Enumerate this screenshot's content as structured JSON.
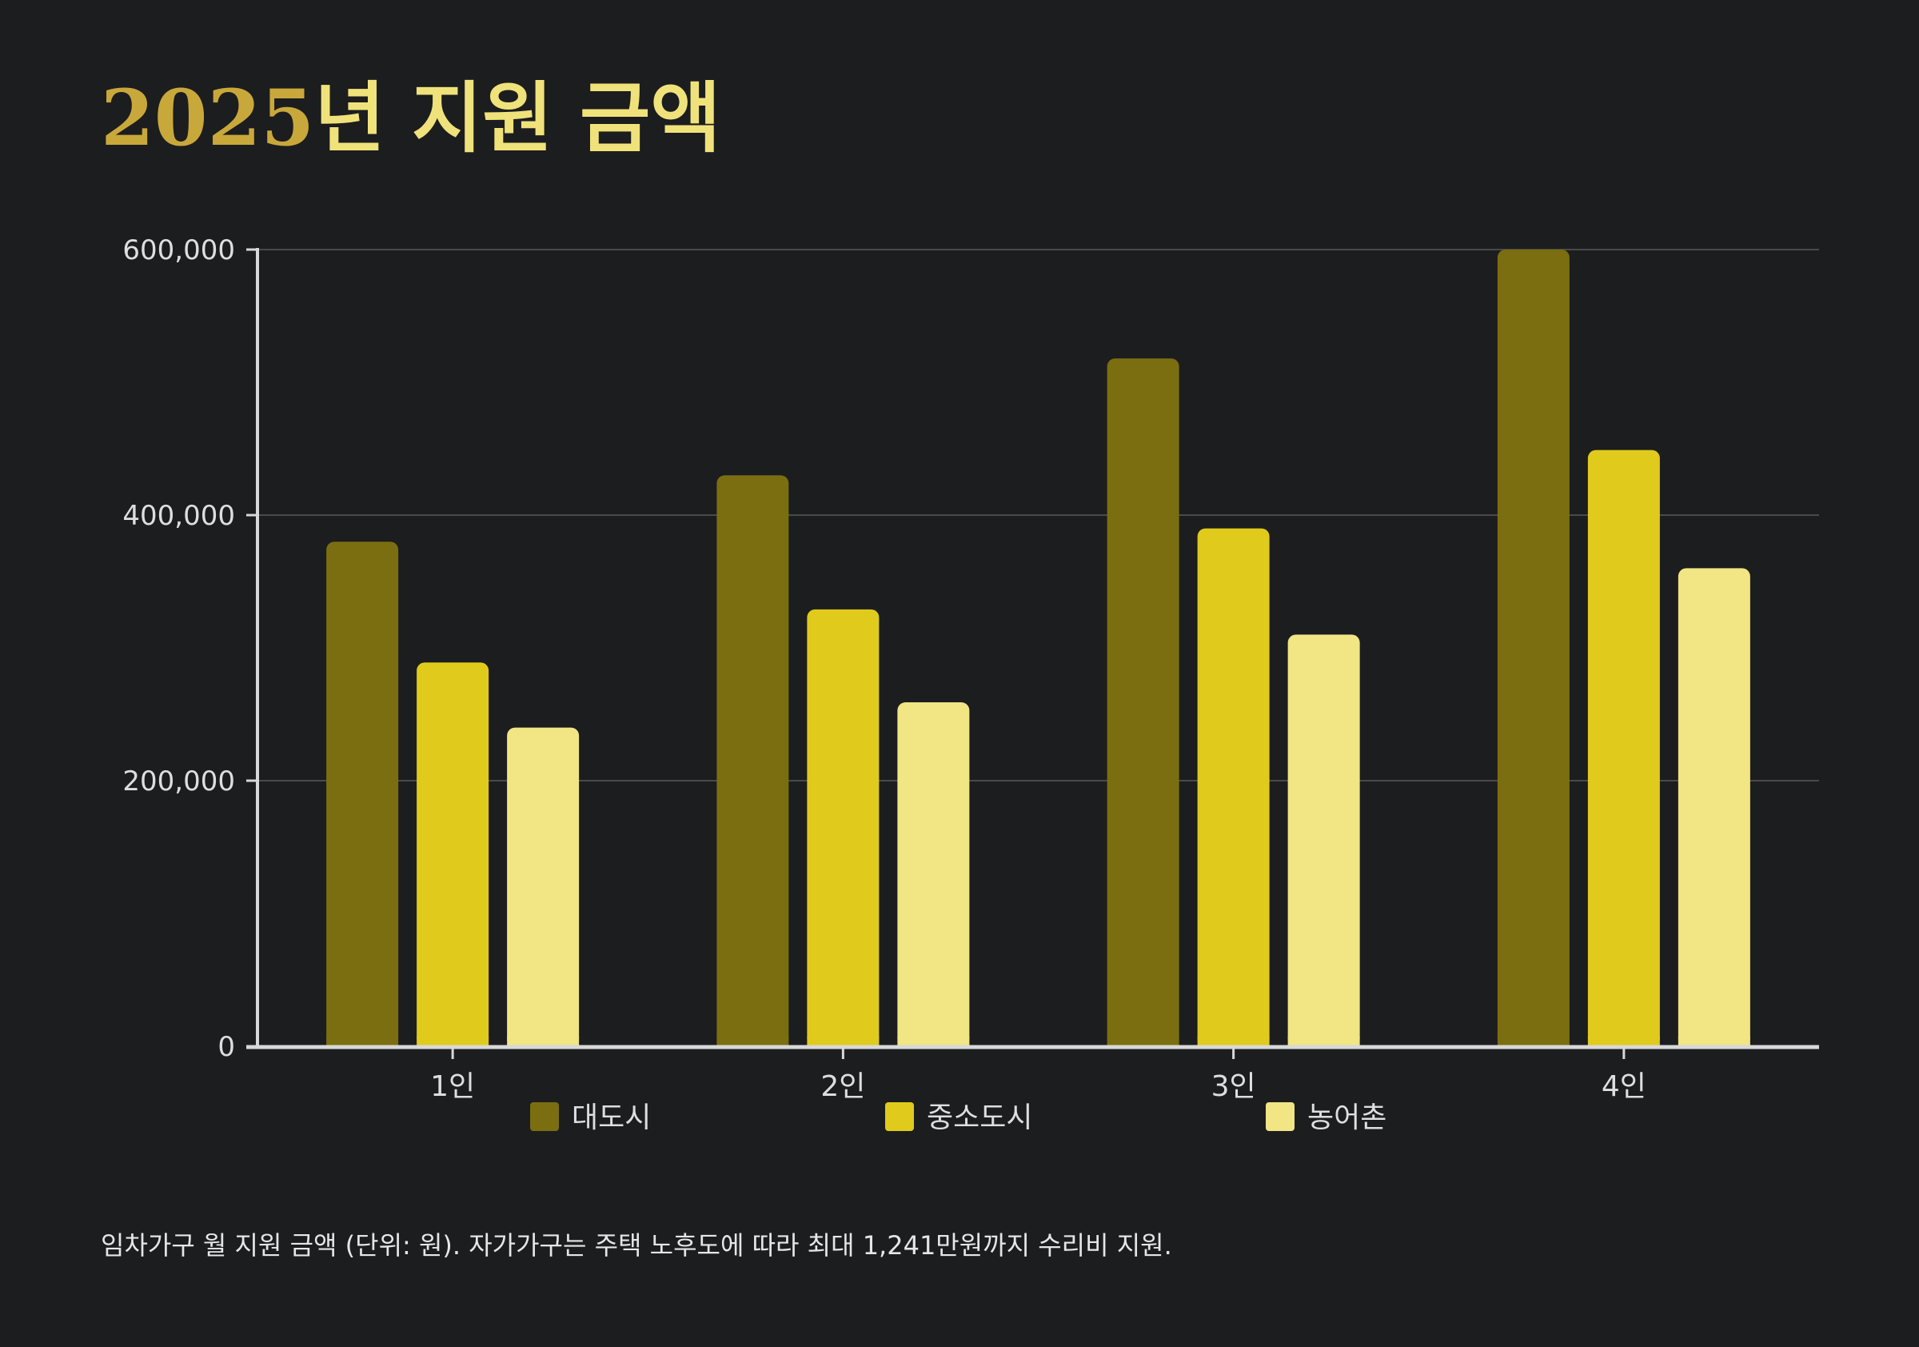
{
  "title": {
    "number": "2025",
    "rest": "년 지원 금액"
  },
  "footnote": "임차가구 월 지원 금액 (단위: 원). 자가가구는 주택 노후도에 따라 최대 1,241만원까지 수리비 지원.",
  "colors": {
    "background": "#1c1d1f",
    "grid": "#4a4a4a",
    "axis": "#d8d8d8",
    "tick_text": "#dedede",
    "title_number": "#c9a83b",
    "title_text": "#f0e27a"
  },
  "chart_data": {
    "type": "bar",
    "categories": [
      "1인",
      "2인",
      "3인",
      "4인"
    ],
    "series": [
      {
        "name": "대도시",
        "color": "#7a6e10",
        "values": [
          380000,
          430000,
          518000,
          600000
        ]
      },
      {
        "name": "중소도시",
        "color": "#e0cb1c",
        "values": [
          289000,
          329000,
          390000,
          449000
        ]
      },
      {
        "name": "농어촌",
        "color": "#f1e584",
        "values": [
          240000,
          259000,
          310000,
          360000
        ]
      }
    ],
    "yticks": [
      {
        "value": 0,
        "label": "0"
      },
      {
        "value": 200000,
        "label": "200,000"
      },
      {
        "value": 400000,
        "label": "400,000"
      },
      {
        "value": 600000,
        "label": "600,000"
      }
    ],
    "ylim": [
      0,
      600000
    ],
    "grid": true,
    "legend": "bottom"
  }
}
